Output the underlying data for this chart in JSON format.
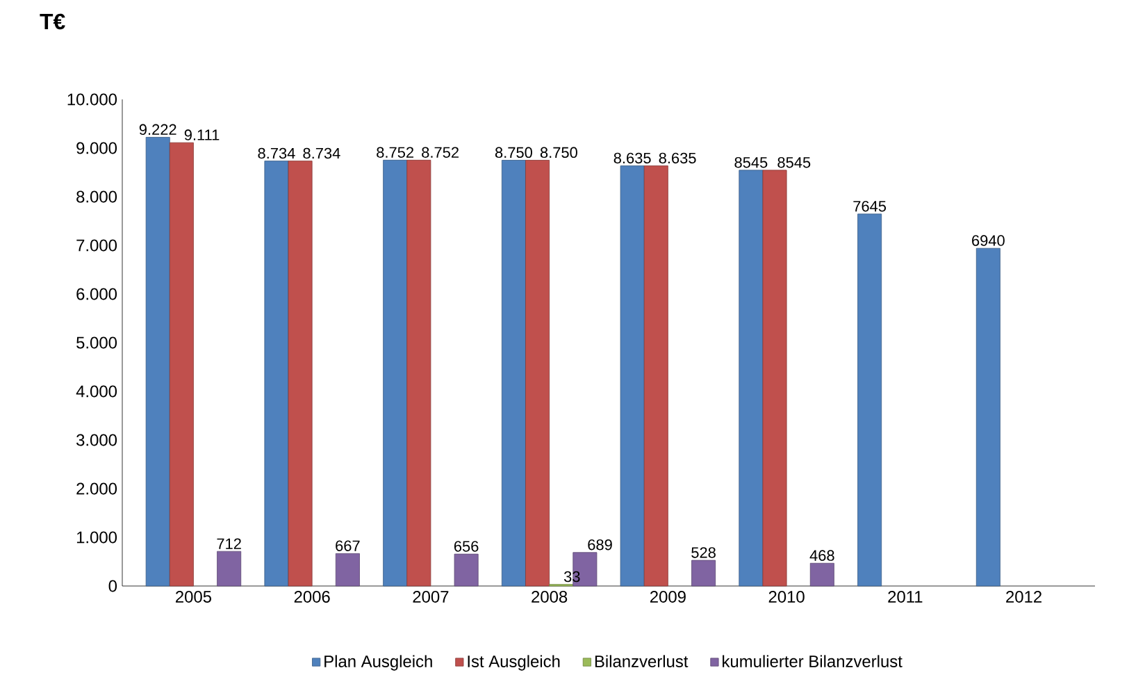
{
  "chart_data": {
    "type": "bar",
    "title": "T€",
    "categories": [
      "2005",
      "2006",
      "2007",
      "2008",
      "2009",
      "2010",
      "2011",
      "2012"
    ],
    "series": [
      {
        "name": "Plan Ausgleich",
        "color": "#4f81bd",
        "values": [
          9222,
          8734,
          8752,
          8750,
          8635,
          8545,
          7645,
          6940
        ],
        "value_labels": [
          "9.222",
          "8.734",
          "8.752",
          "8.750",
          "8.635",
          "8545",
          "7645",
          "6940"
        ]
      },
      {
        "name": "Ist Ausgleich",
        "color": "#c0504d",
        "values": [
          9111,
          8734,
          8752,
          8750,
          8635,
          8545,
          null,
          null
        ],
        "value_labels": [
          "9.111",
          "8.734",
          "8.752",
          "8.750",
          "8.635",
          "8545",
          null,
          null
        ]
      },
      {
        "name": "Bilanzverlust",
        "color": "#9bbb59",
        "values": [
          null,
          null,
          null,
          33,
          null,
          null,
          null,
          null
        ],
        "value_labels": [
          null,
          null,
          null,
          "33",
          null,
          null,
          null,
          null
        ]
      },
      {
        "name": "kumulierter Bilanzverlust",
        "color": "#8064a2",
        "values": [
          712,
          667,
          656,
          689,
          528,
          468,
          null,
          null
        ],
        "value_labels": [
          "712",
          "667",
          "656",
          "689",
          "528",
          "468",
          null,
          null
        ]
      }
    ],
    "ylim": [
      0,
      10000
    ],
    "yticks": [
      0,
      {
        "value": 1000,
        "label": "1.000"
      },
      {
        "value": 2000,
        "label": "2.000"
      },
      {
        "value": 3000,
        "label": "3.000"
      },
      {
        "value": 4000,
        "label": "4.000"
      },
      {
        "value": 5000,
        "label": "5.000"
      },
      {
        "value": 6000,
        "label": "6.000"
      },
      {
        "value": 7000,
        "label": "7.000"
      },
      {
        "value": 8000,
        "label": "8.000"
      },
      {
        "value": 9000,
        "label": "9.000"
      },
      {
        "value": 10000,
        "label": "10.000"
      }
    ],
    "grid": false,
    "legend": "bottom"
  }
}
